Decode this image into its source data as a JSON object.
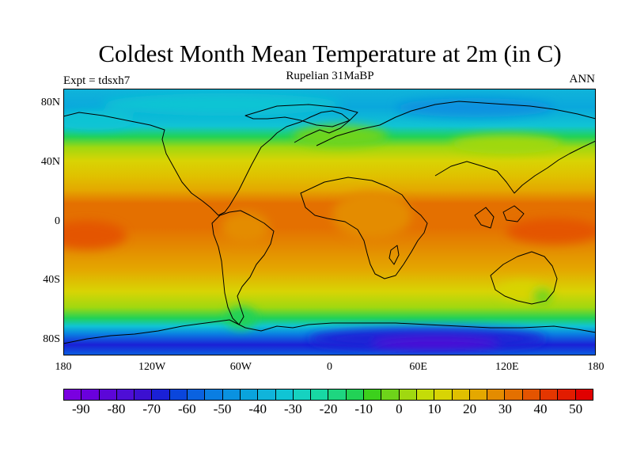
{
  "title": "Coldest Month Mean Temperature at 2m (in C)",
  "subtitle": "Rupelian  31MaBP",
  "experiment": "Expt = tdsxh7",
  "season": "ANN",
  "map": {
    "projection": "cylindrical-equidistant",
    "lon_range": [
      -180,
      180
    ],
    "lat_range": [
      -90,
      90
    ],
    "y_ticks": [
      {
        "label": "80N",
        "lat": 80
      },
      {
        "label": "40N",
        "lat": 40
      },
      {
        "label": "0",
        "lat": 0
      },
      {
        "label": "40S",
        "lat": -40
      },
      {
        "label": "80S",
        "lat": -80
      }
    ],
    "x_ticks": [
      {
        "label": "180",
        "lon": -180
      },
      {
        "label": "120W",
        "lon": -120
      },
      {
        "label": "60W",
        "lon": -60
      },
      {
        "label": "0",
        "lon": 0
      },
      {
        "label": "60E",
        "lon": 60
      },
      {
        "label": "120E",
        "lon": 120
      },
      {
        "label": "180",
        "lon": 180
      }
    ]
  },
  "colorbar": {
    "colors": [
      "#7a00e0",
      "#6a00dc",
      "#5c06d8",
      "#4e0ed6",
      "#3c10d0",
      "#1a20d6",
      "#0a46dc",
      "#0a62e0",
      "#0a7ee2",
      "#0a92e0",
      "#0aa4dc",
      "#10b4da",
      "#10c4d4",
      "#16d2c0",
      "#18d8a4",
      "#1ed680",
      "#22d256",
      "#3cd01c",
      "#6ed41a",
      "#a0d810",
      "#c4dc08",
      "#d8d404",
      "#e0c000",
      "#e4a800",
      "#e48c00",
      "#e47000",
      "#e45400",
      "#e43600",
      "#e21c00",
      "#e00000"
    ],
    "labels": [
      "-90",
      "-80",
      "-70",
      "-60",
      "-50",
      "-40",
      "-30",
      "-20",
      "-10",
      "0",
      "10",
      "20",
      "30",
      "40",
      "50"
    ]
  }
}
